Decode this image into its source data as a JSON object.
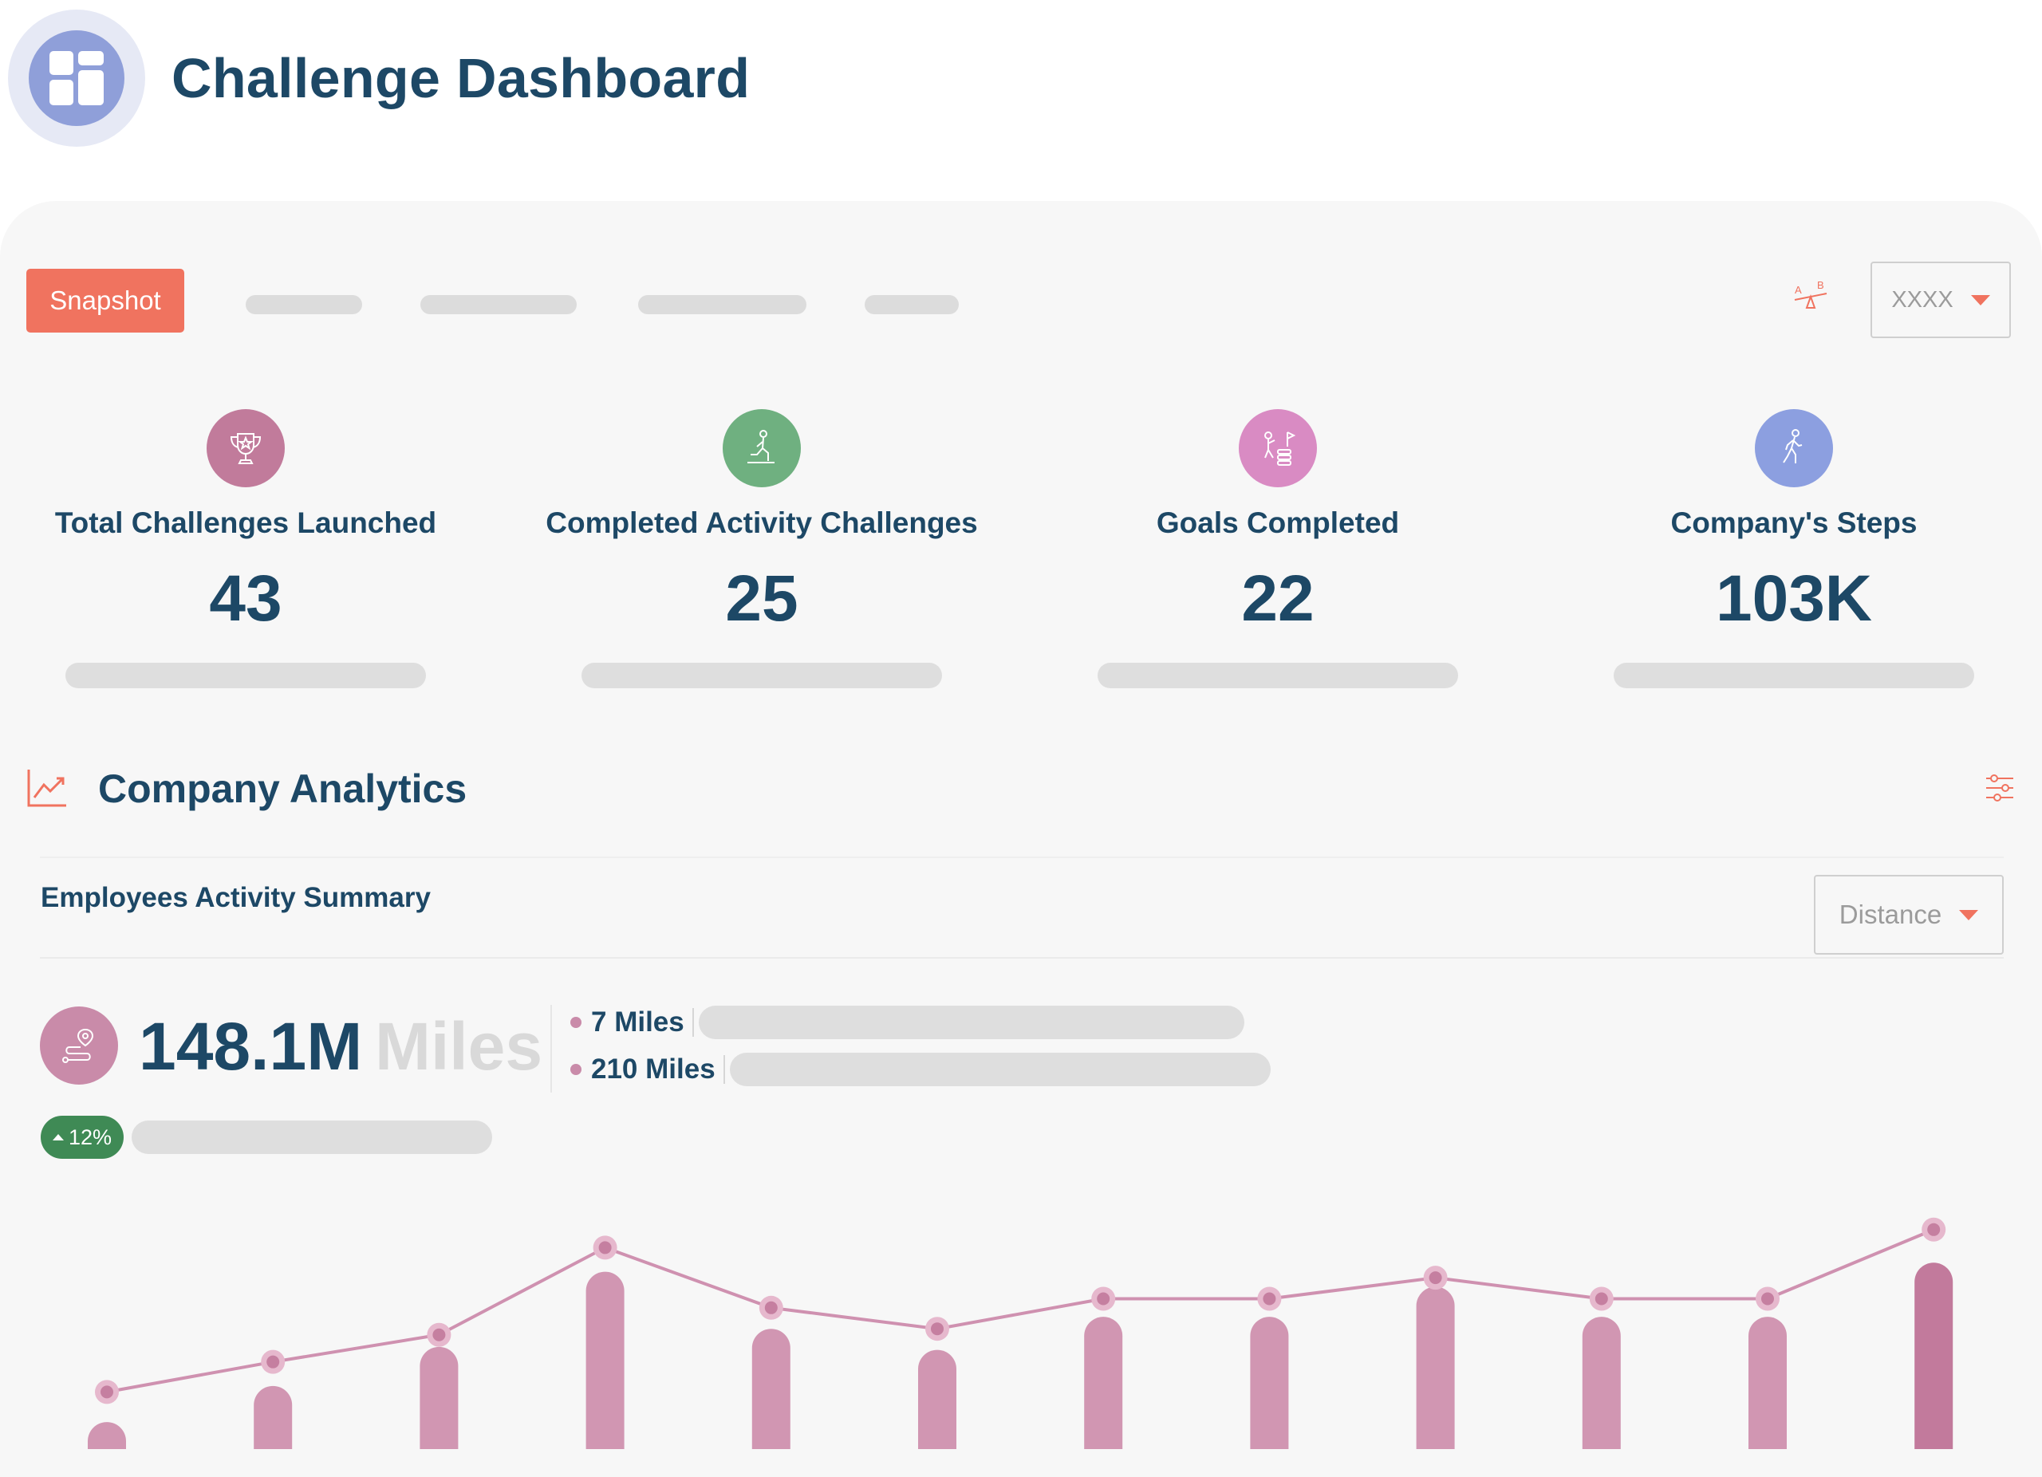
{
  "header": {
    "title": "Challenge Dashboard",
    "logo_icon": "dashboard-grid-icon"
  },
  "toolbar": {
    "active_tab": "Snapshot",
    "dropdown_value": "XXXX",
    "compare_icon": "ab-compare-icon"
  },
  "stats": [
    {
      "label": "Total Challenges Launched",
      "value": "43",
      "icon": "trophy-icon",
      "color": "#c17b9b"
    },
    {
      "label": "Completed Activity Challenges",
      "value": "25",
      "icon": "activity-icon",
      "color": "#6fb080"
    },
    {
      "label": "Goals Completed",
      "value": "22",
      "icon": "goal-flag-icon",
      "color": "#d98bc3"
    },
    {
      "label": "Company's Steps",
      "value": "103K",
      "icon": "walking-icon",
      "color": "#8c9fe0"
    }
  ],
  "analytics": {
    "title": "Company Analytics",
    "subtitle": "Employees Activity Summary",
    "metric_select": "Distance",
    "total_value": "148.1M",
    "total_unit": "Miles",
    "legend": [
      "7 Miles",
      "210 Miles"
    ],
    "change": "12%",
    "accent": "#f0735f"
  },
  "chart_data": {
    "type": "bar",
    "bar_values": [
      9,
      21,
      34,
      59,
      40,
      33,
      44,
      44,
      54,
      44,
      44,
      62
    ],
    "line_values": [
      19,
      29,
      38,
      67,
      47,
      40,
      50,
      50,
      57,
      50,
      50,
      73
    ],
    "y_max": 100,
    "colors": {
      "bar": "#d196b2",
      "bar_highlight": "#c27a9c",
      "line": "#cf91b0",
      "marker_outer": "#e6b8cd",
      "marker_inner": "#c57fa0"
    }
  }
}
